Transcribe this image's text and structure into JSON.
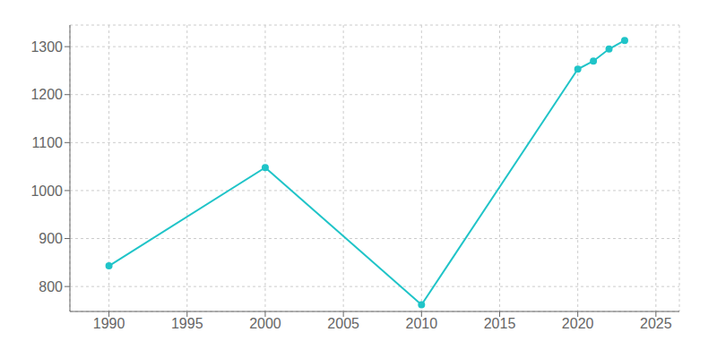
{
  "chart_data": {
    "type": "line",
    "x": [
      1990,
      2000,
      2010,
      2020,
      2021,
      2022,
      2023
    ],
    "values": [
      843,
      1048,
      762,
      1253,
      1270,
      1295,
      1313
    ],
    "color": "#20C4C8",
    "marker": "o",
    "xlim": [
      1987.5,
      2026.5
    ],
    "ylim": [
      748,
      1345
    ],
    "xticks": [
      1990,
      1995,
      2000,
      2005,
      2010,
      2015,
      2020,
      2025
    ],
    "yticks": [
      800,
      900,
      1000,
      1100,
      1200,
      1300
    ],
    "grid": true
  }
}
